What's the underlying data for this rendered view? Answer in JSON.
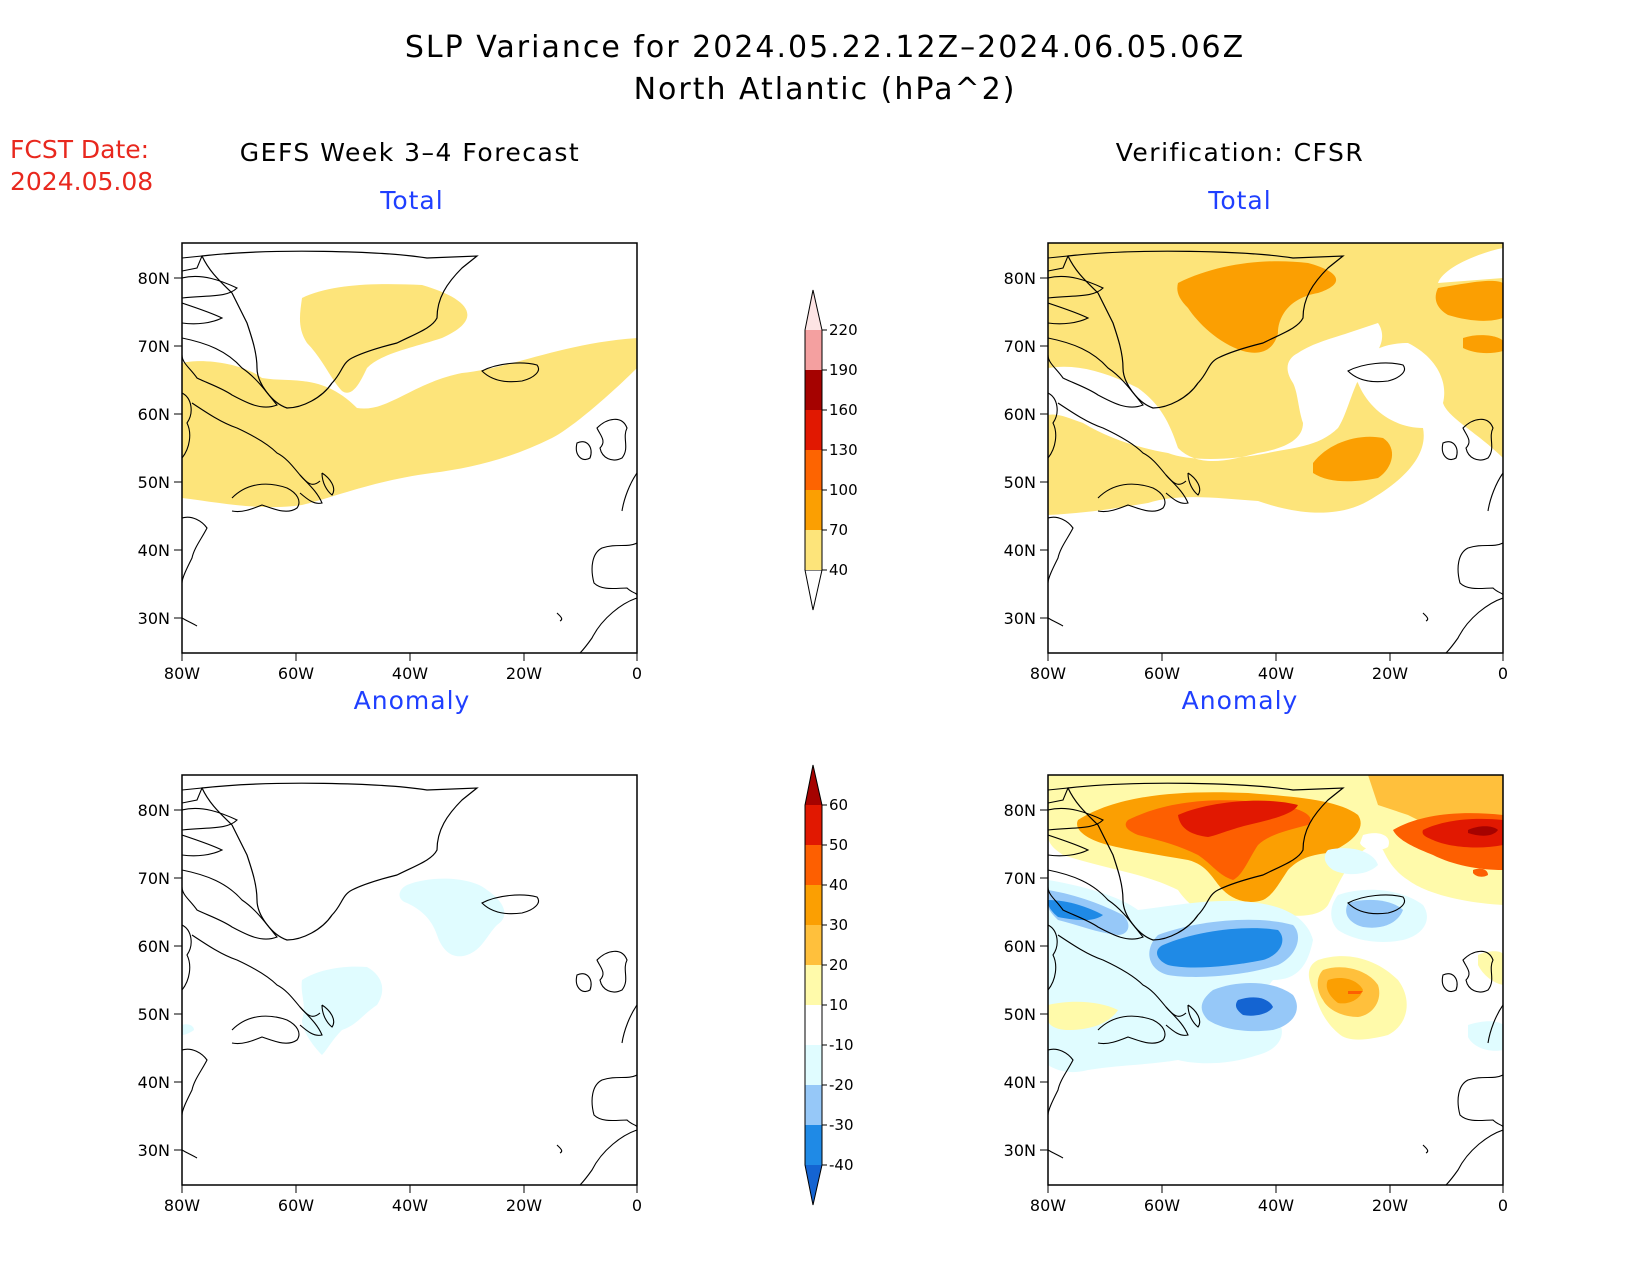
{
  "title": {
    "line1": "SLP Variance for 2024.05.22.12Z–2024.06.05.06Z",
    "line2": "North Atlantic (hPa^2)"
  },
  "fcst": {
    "label": "FCST Date:",
    "date": "2024.05.08"
  },
  "columns": {
    "left": "GEFS Week 3–4 Forecast",
    "right": "Verification: CFSR"
  },
  "panels": {
    "total_label": "Total",
    "anomaly_label": "Anomaly"
  },
  "axes": {
    "lat_ticks": [
      "80N",
      "70N",
      "60N",
      "50N",
      "40N",
      "30N"
    ],
    "lon_ticks": [
      "80W",
      "60W",
      "40W",
      "20W",
      "0"
    ]
  },
  "colorbar_total": {
    "levels": [
      "40",
      "70",
      "100",
      "130",
      "160",
      "190",
      "220"
    ],
    "colors": [
      "#fde47a",
      "#fb9f02",
      "#fd6401",
      "#e11801",
      "#a50200",
      "#f4a0a0",
      "#fde4e4"
    ]
  },
  "colorbar_anomaly": {
    "levels": [
      "-40",
      "-30",
      "-20",
      "-10",
      "10",
      "20",
      "30",
      "40",
      "50",
      "60"
    ],
    "colors": [
      "#1464d2",
      "#1f8ae6",
      "#96c8f8",
      "#e0fcff",
      "#ffffff",
      "#fffaaa",
      "#ffc03c",
      "#fb9f02",
      "#fd5f01",
      "#e11801",
      "#a50200"
    ]
  }
}
